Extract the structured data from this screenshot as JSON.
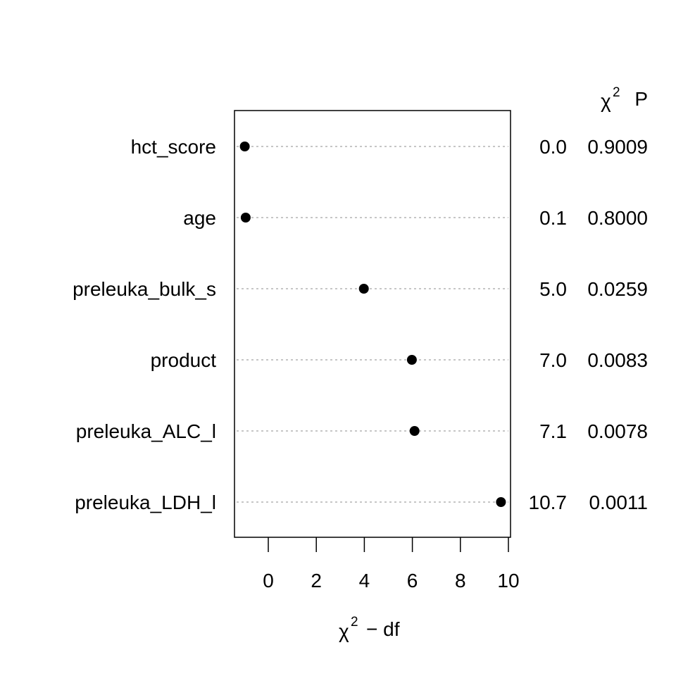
{
  "chart_data": {
    "type": "dot",
    "title": "",
    "xlabel": {
      "symbol": "χ",
      "superscript": "2",
      "suffix": "− df"
    },
    "ylabel": "",
    "x_ticks": [
      0,
      2,
      4,
      6,
      8,
      10
    ],
    "xlim": [
      -1.4,
      10.1
    ],
    "grid": "horizontal dotted guide lines",
    "legend": "none",
    "right_headers": {
      "chi2_symbol": "χ",
      "chi2_superscript": "2",
      "p_label": "P"
    },
    "rows": [
      {
        "name": "hct_score",
        "x": -0.98,
        "chi2": "0.0",
        "p": "0.9009"
      },
      {
        "name": "age",
        "x": -0.94,
        "chi2": "0.1",
        "p": "0.8000"
      },
      {
        "name": "preleuka_bulk_s",
        "x": 3.98,
        "chi2": "5.0",
        "p": "0.0259"
      },
      {
        "name": "product",
        "x": 5.98,
        "chi2": "7.0",
        "p": "0.0083"
      },
      {
        "name": "preleuka_ALC_l",
        "x": 6.09,
        "chi2": "7.1",
        "p": "0.0078"
      },
      {
        "name": "preleuka_LDH_l",
        "x": 9.69,
        "chi2": "10.7",
        "p": "0.0011"
      }
    ]
  }
}
